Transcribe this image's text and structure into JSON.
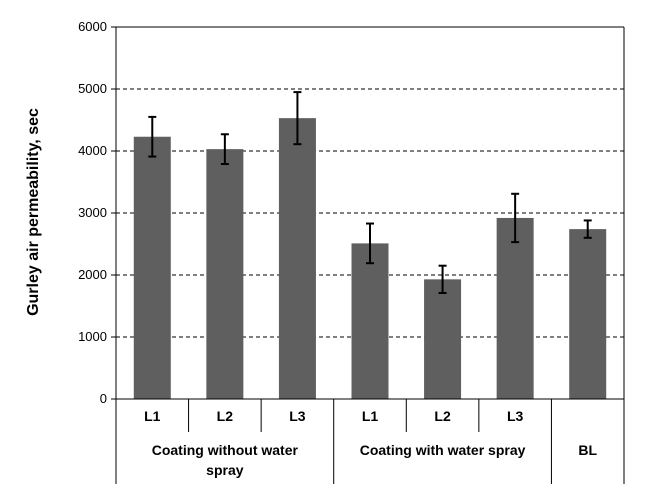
{
  "chart_data": {
    "type": "bar",
    "ylabel": "Gurley air permeability, sec",
    "ylim": [
      0,
      6000
    ],
    "yticks": [
      0,
      1000,
      2000,
      3000,
      4000,
      5000,
      6000
    ],
    "grid": "horizontal dashed",
    "bar_color": "#5f5f5f",
    "categories": [
      "L1",
      "L2",
      "L3",
      "L1",
      "L2",
      "L3",
      ""
    ],
    "groups": [
      {
        "label": "Coating without water spray",
        "lines": [
          "Coating without water",
          "spray"
        ]
      },
      {
        "label": "Coating with water spray",
        "lines": [
          "Coating with water spray"
        ]
      },
      {
        "label": "BL",
        "lines": [
          "BL"
        ]
      }
    ],
    "values": [
      4230,
      4030,
      4530,
      2510,
      1930,
      2920,
      2740
    ],
    "errors": [
      320,
      240,
      420,
      320,
      220,
      390,
      140
    ]
  }
}
